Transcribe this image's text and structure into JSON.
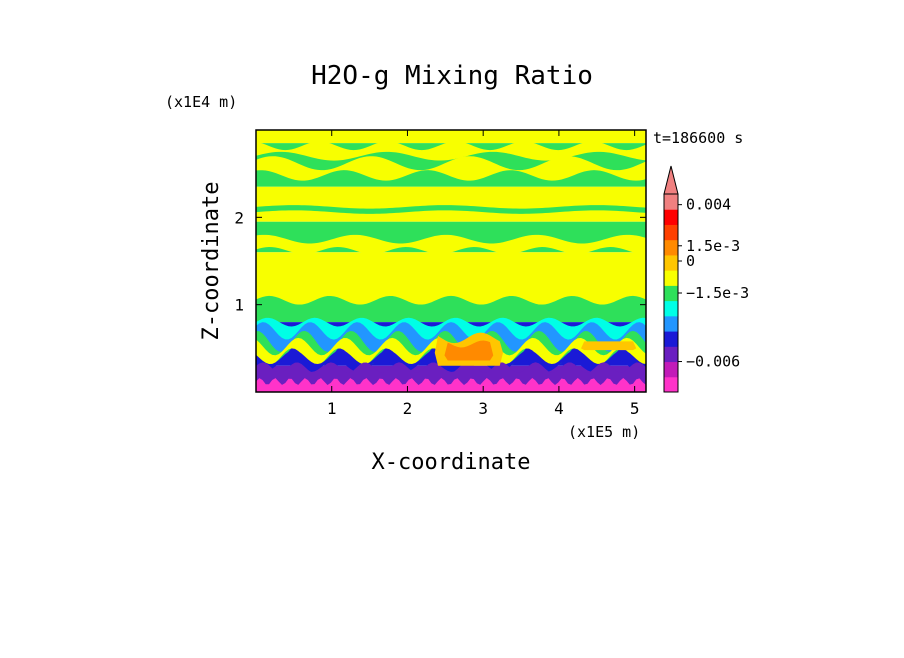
{
  "chart_data": {
    "type": "heatmap",
    "title": "H2O-g Mixing Ratio",
    "xlabel": "X-coordinate",
    "ylabel": "Z-coordinate",
    "x_scale_label": "(x1E5 m)",
    "y_scale_label": "(x1E4 m)",
    "time_label": "t=186600 s",
    "xlim": [
      0,
      5.15
    ],
    "ylim": [
      0,
      3.0
    ],
    "x_ticks": [
      1,
      2,
      3,
      4,
      5
    ],
    "x_tick_labels": [
      "1",
      "2",
      "3",
      "4",
      "5"
    ],
    "y_ticks": [
      1,
      2
    ],
    "y_tick_labels": [
      "1",
      "2"
    ],
    "colorbar": {
      "levels": [
        {
          "color": "#ff33c9"
        },
        {
          "color": "#c21bb8"
        },
        {
          "color": "#6a1fc0"
        },
        {
          "color": "#1a1ad6"
        },
        {
          "color": "#2296ff"
        },
        {
          "color": "#00ffe6"
        },
        {
          "color": "#2ee05a"
        },
        {
          "color": "#f8ff00"
        },
        {
          "color": "#ffc600"
        },
        {
          "color": "#ff8a00"
        },
        {
          "color": "#ff4000"
        },
        {
          "color": "#ff0000"
        },
        {
          "color": "#f08080"
        }
      ],
      "labels": [
        {
          "text": "0.004",
          "level_edge": 12.3
        },
        {
          "text": "1.5e-3",
          "level_edge": 9.6
        },
        {
          "text": "0",
          "level_edge": 8.6
        },
        {
          "text": "−1.5e-3",
          "level_edge": 6.5
        },
        {
          "text": "−0.006",
          "level_edge": 2.0
        }
      ],
      "extend_top": true
    },
    "field_bands": [
      {
        "z_range": [
          2.85,
          3.0
        ],
        "value": "yellow"
      },
      {
        "z_range": [
          2.35,
          2.85
        ],
        "value": "green_yellow_mix"
      },
      {
        "z_range": [
          1.95,
          2.35
        ],
        "value": "yellow"
      },
      {
        "z_range": [
          1.6,
          1.95
        ],
        "value": "green"
      },
      {
        "z_range": [
          1.0,
          1.6
        ],
        "value": "yellow"
      },
      {
        "z_range": [
          0.8,
          1.0
        ],
        "value": "green"
      },
      {
        "z_range": [
          0.3,
          0.8
        ],
        "value": "blue_cyan_waves"
      },
      {
        "z_range": [
          0.0,
          0.3
        ],
        "value": "purple"
      }
    ]
  }
}
